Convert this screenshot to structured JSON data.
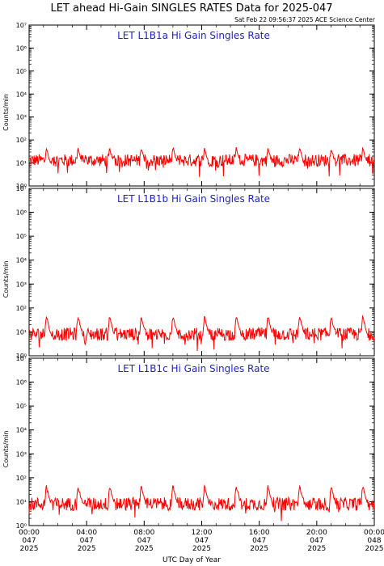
{
  "title": "LET ahead Hi-Gain SINGLES RATES Data for 2025-047",
  "timestamp": "Sat Feb 22 09:56:37 2025 ACE Science Center",
  "xlabel": "UTC Day of Year",
  "colors": {
    "trace": "#ff0000",
    "panel_title": "#1f1fcc",
    "axis": "#000000",
    "background": "#ffffff"
  },
  "chart_data": [
    {
      "type": "line",
      "title": "LET L1B1a Hi Gain Singles Rate",
      "ylabel": "Counts/min",
      "yscale": "log",
      "ylim": [
        1,
        10000000
      ],
      "xlim": [
        0,
        24
      ],
      "grid": false,
      "series": [
        {
          "baseline": 13,
          "spike_peak": 45,
          "spike_times_hr": [
            1.2,
            3.4,
            5.6,
            7.8,
            10.0,
            12.2,
            14.4,
            16.6,
            18.8,
            21.0,
            23.2
          ]
        }
      ]
    },
    {
      "type": "line",
      "title": "LET L1B1b Hi Gain Singles Rate",
      "ylabel": "Counts/min",
      "yscale": "log",
      "ylim": [
        1,
        10000000
      ],
      "xlim": [
        0,
        24
      ],
      "grid": false,
      "series": [
        {
          "baseline": 8,
          "spike_peak": 45,
          "spike_times_hr": [
            1.2,
            3.4,
            5.6,
            7.8,
            10.0,
            12.2,
            14.4,
            16.6,
            18.8,
            21.0,
            23.2
          ]
        }
      ]
    },
    {
      "type": "line",
      "title": "LET L1B1c Hi Gain Singles Rate",
      "ylabel": "Counts/min",
      "yscale": "log",
      "ylim": [
        1,
        10000000
      ],
      "xlim": [
        0,
        24
      ],
      "grid": false,
      "series": [
        {
          "baseline": 8,
          "spike_peak": 45,
          "spike_times_hr": [
            1.2,
            3.4,
            5.6,
            7.8,
            10.0,
            12.2,
            14.4,
            16.6,
            18.8,
            21.0,
            23.2
          ]
        }
      ]
    }
  ],
  "x_ticks": [
    {
      "hr": 0,
      "time": "00:00",
      "day": "047",
      "year": "2025"
    },
    {
      "hr": 4,
      "time": "04:00",
      "day": "047",
      "year": "2025"
    },
    {
      "hr": 8,
      "time": "08:00",
      "day": "047",
      "year": "2025"
    },
    {
      "hr": 12,
      "time": "12:00",
      "day": "047",
      "year": "2025"
    },
    {
      "hr": 16,
      "time": "16:00",
      "day": "047",
      "year": "2025"
    },
    {
      "hr": 20,
      "time": "20:00",
      "day": "047",
      "year": "2025"
    },
    {
      "hr": 24,
      "time": "00:00",
      "day": "048",
      "year": "2025"
    }
  ]
}
